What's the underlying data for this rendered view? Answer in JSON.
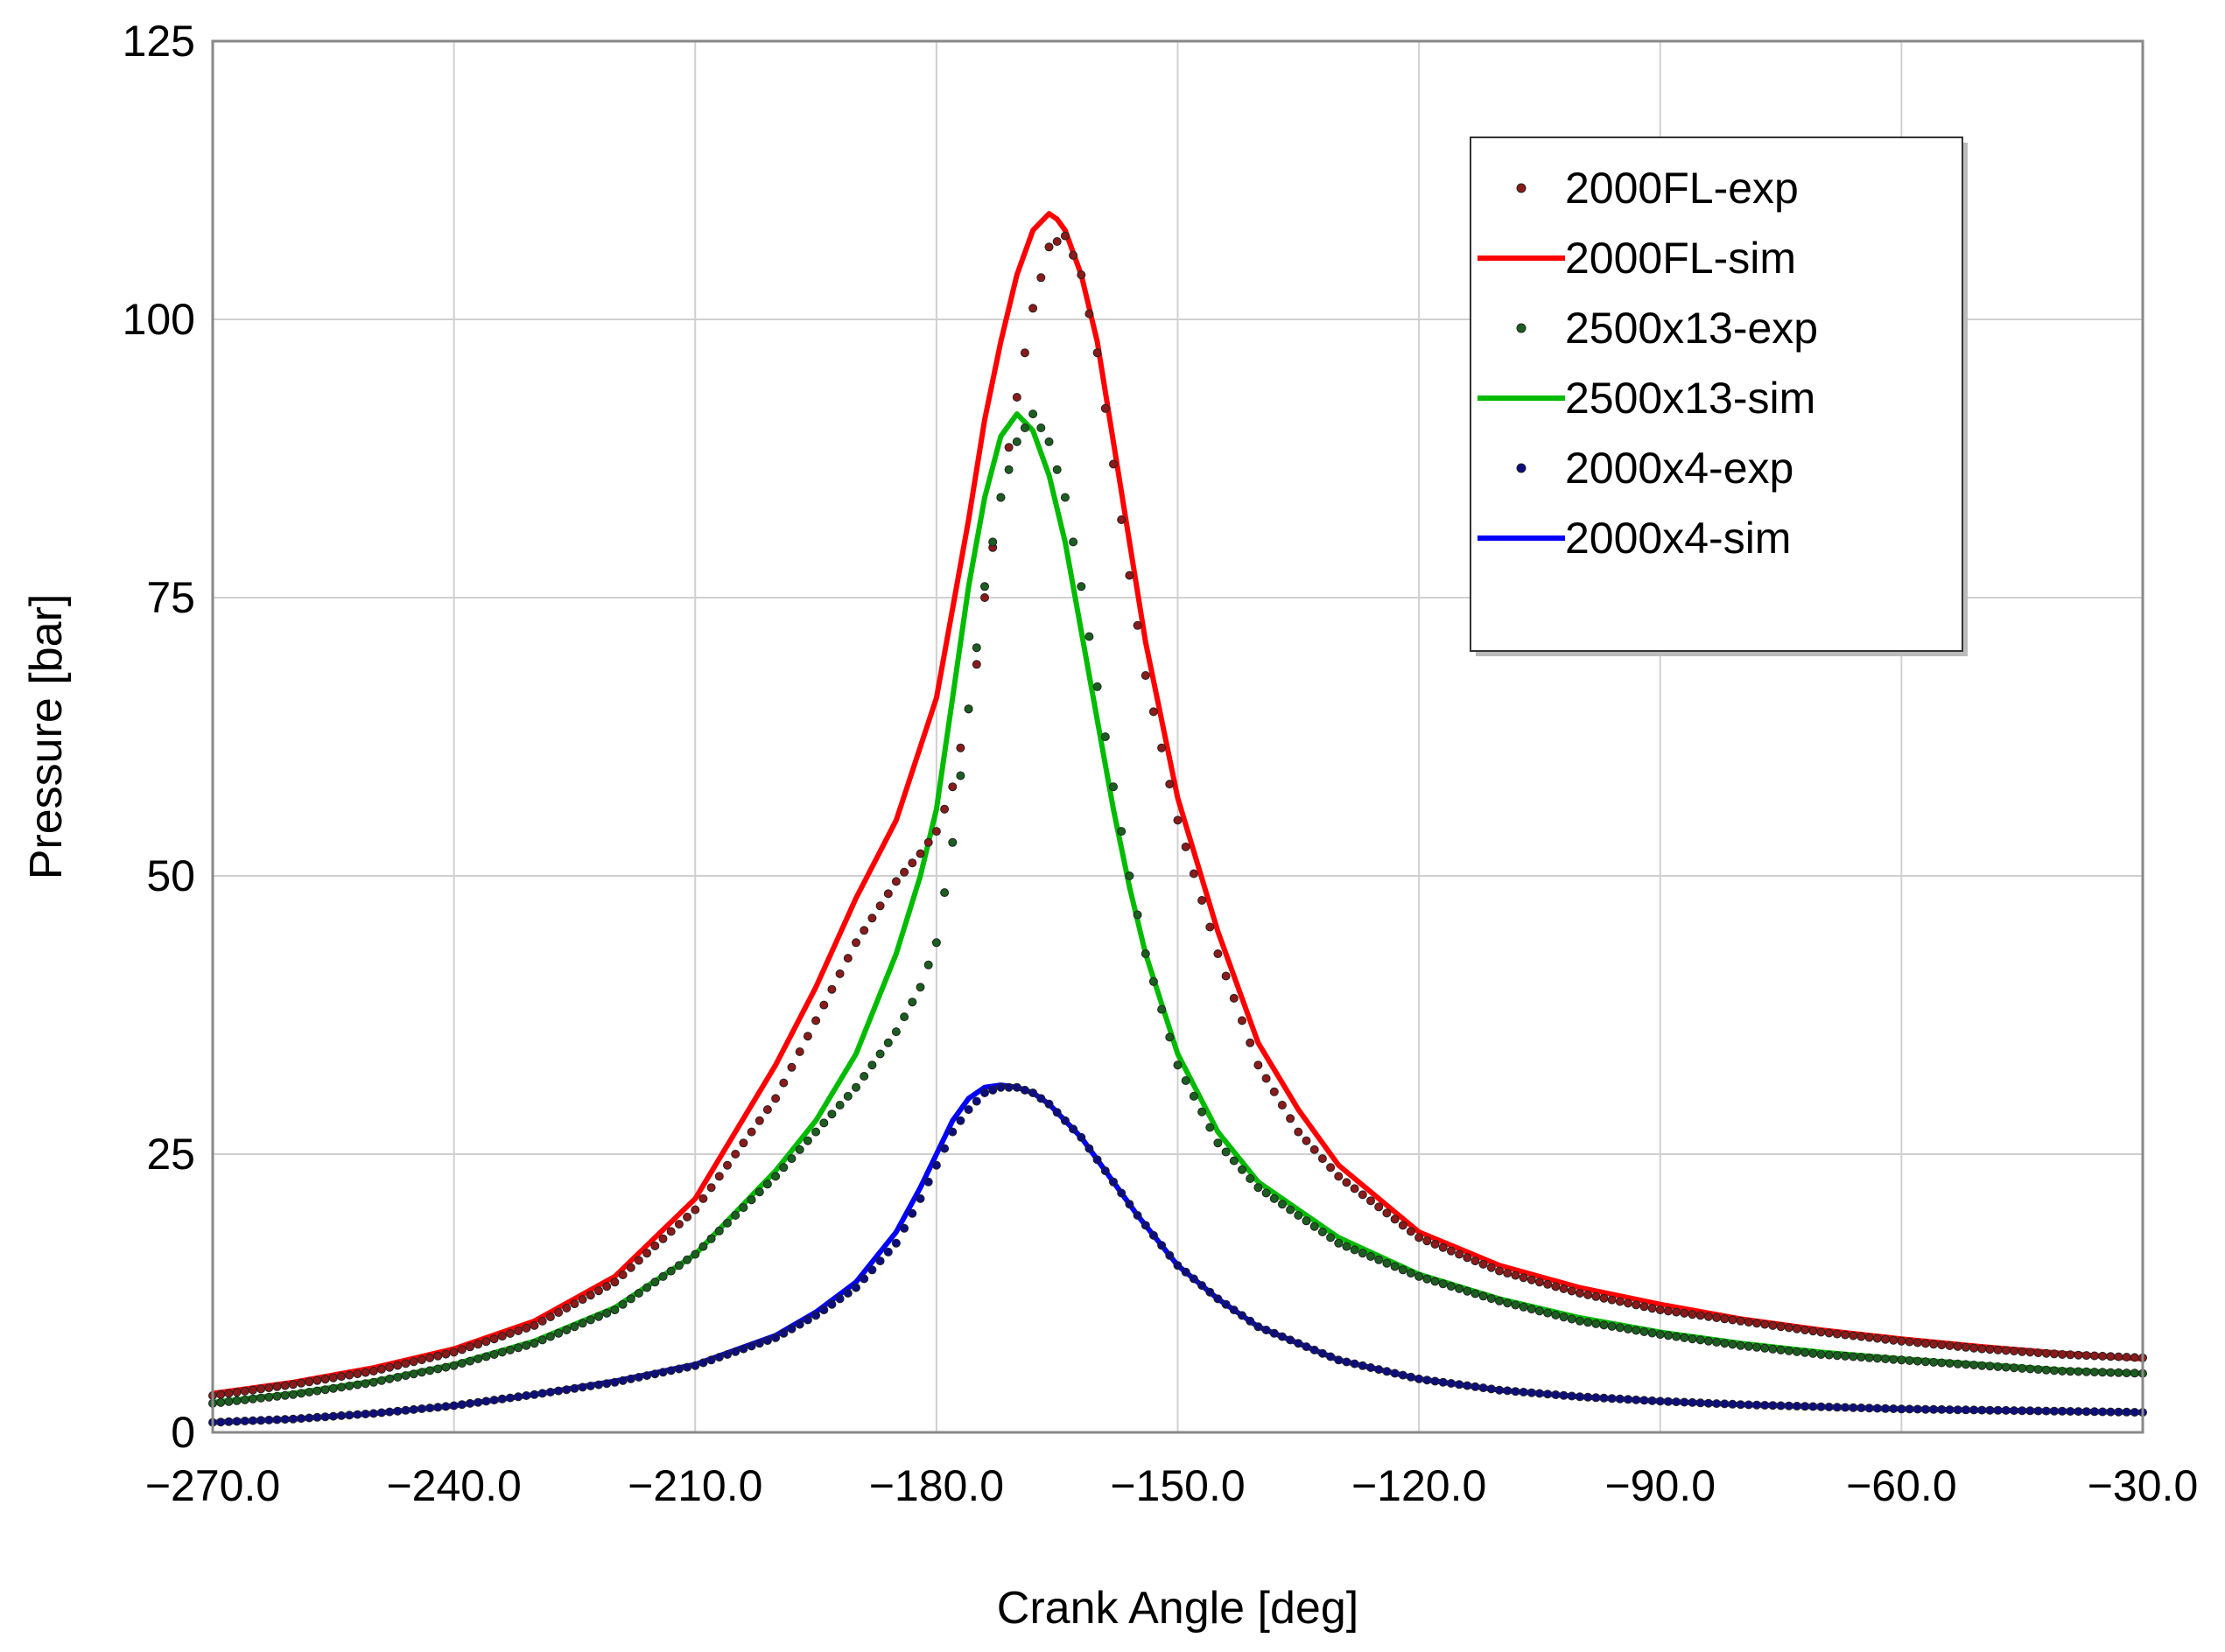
{
  "chart_data": {
    "type": "line",
    "title": "",
    "xlabel": "Crank Angle  [deg]",
    "ylabel": "Pressure [bar]",
    "xlim": [
      -270,
      -30
    ],
    "ylim": [
      0,
      125
    ],
    "grid": true,
    "legend_position": "top-right",
    "x_ticks": [
      -270,
      -240,
      -210,
      -180,
      -150,
      -120,
      -90,
      -60,
      -30
    ],
    "x_tick_labels": [
      "−270.0",
      "−240.0",
      "−210.0",
      "−180.0",
      "−150.0",
      "−120.0",
      "−90.0",
      "−60.0",
      "−30.0"
    ],
    "y_ticks": [
      0,
      25,
      50,
      75,
      100,
      125
    ],
    "y_tick_labels": [
      "0",
      "25",
      "50",
      "75",
      "100",
      "125"
    ],
    "series": [
      {
        "name": "2000FL-exp",
        "kind": "exp",
        "color": "#8b1a1a",
        "x": [
          -270,
          -260,
          -250,
          -240,
          -230,
          -220,
          -210,
          -200,
          -195,
          -190,
          -185,
          -182,
          -180,
          -178,
          -176,
          -175,
          -174,
          -172,
          -170,
          -168,
          -166,
          -164,
          -162,
          -160,
          -158,
          -156,
          -154,
          -150,
          -145,
          -140,
          -135,
          -130,
          -120,
          -110,
          -100,
          -90,
          -80,
          -70,
          -60,
          -50,
          -40,
          -30
        ],
        "y": [
          3.3,
          4.3,
          5.5,
          7.2,
          9.6,
          13.5,
          20,
          30,
          37,
          44,
          49.5,
          52,
          54,
          58,
          65,
          69,
          75,
          84,
          93,
          101,
          106.5,
          107.5,
          104,
          97,
          87,
          77,
          68,
          55,
          43,
          33,
          27,
          23,
          17.5,
          14.5,
          12.5,
          11,
          10,
          9,
          8.2,
          7.5,
          7,
          6.7
        ]
      },
      {
        "name": "2000FL-sim",
        "kind": "sim",
        "color": "#ff0000",
        "x": [
          -270,
          -260,
          -250,
          -240,
          -230,
          -220,
          -210,
          -200,
          -195,
          -190,
          -185,
          -180,
          -178,
          -176,
          -174,
          -172,
          -170,
          -168,
          -166,
          -165,
          -164,
          -162,
          -160,
          -158,
          -156,
          -154,
          -150,
          -145,
          -140,
          -135,
          -130,
          -120,
          -110,
          -100,
          -90,
          -80,
          -70,
          -60,
          -50,
          -40,
          -30
        ],
        "y": [
          3.5,
          4.5,
          5.8,
          7.5,
          10,
          14,
          21,
          33,
          40,
          48,
          55,
          66,
          74,
          82,
          91,
          98,
          104,
          108,
          109.5,
          109,
          108,
          104,
          98,
          89,
          80,
          71,
          57,
          45,
          35,
          29,
          24,
          18,
          15,
          13,
          11.5,
          10.2,
          9.2,
          8.4,
          7.7,
          7.1,
          6.6
        ]
      },
      {
        "name": "2500x13-exp",
        "kind": "exp",
        "color": "#1b5e20",
        "x": [
          -270,
          -260,
          -250,
          -240,
          -230,
          -220,
          -210,
          -200,
          -195,
          -190,
          -185,
          -182,
          -180,
          -178,
          -176,
          -174,
          -172,
          -170,
          -168,
          -166,
          -164,
          -162,
          -160,
          -158,
          -156,
          -154,
          -150,
          -145,
          -140,
          -130,
          -120,
          -110,
          -100,
          -90,
          -80,
          -70,
          -60,
          -50,
          -40,
          -30
        ],
        "y": [
          2.6,
          3.4,
          4.5,
          6,
          8,
          11,
          16,
          23,
          27,
          31,
          36,
          40,
          44,
          53,
          65,
          76,
          84,
          89,
          91.5,
          89,
          84,
          76,
          67,
          58,
          50,
          43,
          33,
          26,
          22,
          17,
          14,
          11.8,
          10,
          8.8,
          7.8,
          7,
          6.5,
          6,
          5.5,
          5.3
        ]
      },
      {
        "name": "2500x13-sim",
        "kind": "sim",
        "color": "#00bb00",
        "x": [
          -270,
          -260,
          -250,
          -240,
          -230,
          -220,
          -210,
          -200,
          -195,
          -190,
          -185,
          -182,
          -180,
          -178,
          -176,
          -174,
          -172,
          -170,
          -168,
          -166,
          -164,
          -162,
          -160,
          -158,
          -156,
          -154,
          -150,
          -145,
          -140,
          -130,
          -120,
          -110,
          -100,
          -90,
          -80,
          -70,
          -60,
          -50,
          -40,
          -30
        ],
        "y": [
          2.7,
          3.5,
          4.6,
          6.1,
          8.2,
          11.2,
          16,
          23.5,
          28,
          34,
          43,
          50,
          56,
          66,
          76,
          84,
          89.5,
          91.5,
          90,
          86,
          80,
          72,
          64,
          56,
          49,
          43,
          34,
          27,
          22.5,
          17.5,
          14.2,
          12,
          10.3,
          9,
          8,
          7.2,
          6.6,
          6.1,
          5.6,
          5.3
        ]
      },
      {
        "name": "2000x4-exp",
        "kind": "exp",
        "color": "#0d0d80",
        "x": [
          -270,
          -260,
          -250,
          -240,
          -230,
          -220,
          -210,
          -200,
          -195,
          -190,
          -185,
          -182,
          -180,
          -178,
          -176,
          -174,
          -172,
          -170,
          -168,
          -166,
          -164,
          -162,
          -160,
          -158,
          -155,
          -150,
          -145,
          -140,
          -130,
          -120,
          -110,
          -100,
          -90,
          -80,
          -70,
          -60,
          -50,
          -40,
          -30
        ],
        "y": [
          0.9,
          1.2,
          1.7,
          2.4,
          3.4,
          4.5,
          6,
          8.5,
          10.5,
          13,
          17,
          21,
          24,
          27,
          29,
          30.5,
          31,
          31,
          30.5,
          29.5,
          28,
          26.5,
          24.5,
          22.5,
          19.5,
          15,
          12,
          9.5,
          6.5,
          4.8,
          3.8,
          3.2,
          2.8,
          2.5,
          2.3,
          2.1,
          2,
          1.9,
          1.8
        ]
      },
      {
        "name": "2000x4-sim",
        "kind": "sim",
        "color": "#0000ff",
        "x": [
          -270,
          -260,
          -250,
          -240,
          -230,
          -220,
          -210,
          -200,
          -195,
          -190,
          -185,
          -182,
          -180,
          -178,
          -176,
          -174,
          -172,
          -170,
          -168,
          -166,
          -164,
          -162,
          -160,
          -158,
          -155,
          -150,
          -145,
          -140,
          -130,
          -120,
          -110,
          -100,
          -90,
          -80,
          -70,
          -60,
          -50,
          -40,
          -30
        ],
        "y": [
          0.9,
          1.2,
          1.7,
          2.4,
          3.4,
          4.6,
          6.1,
          8.7,
          10.8,
          13.5,
          18,
          22,
          25,
          28,
          30,
          31,
          31.2,
          31,
          30.5,
          29.5,
          28,
          26.5,
          24.5,
          22.5,
          19.5,
          15,
          12,
          9.5,
          6.5,
          4.8,
          3.8,
          3.2,
          2.8,
          2.5,
          2.3,
          2.1,
          2,
          1.9,
          1.8
        ]
      }
    ]
  }
}
